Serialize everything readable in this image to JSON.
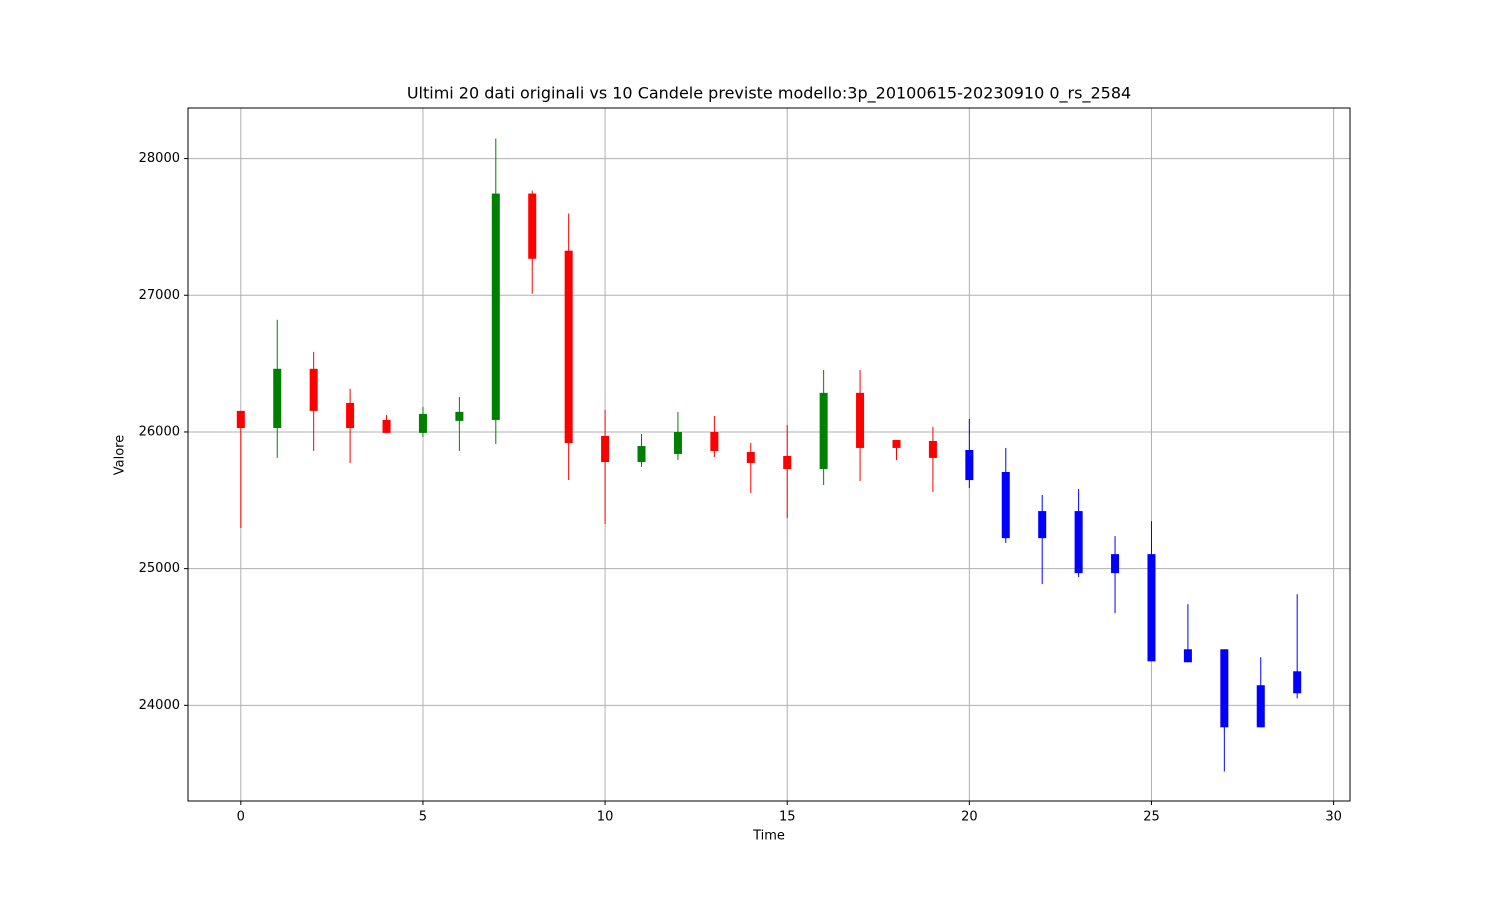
{
  "chart_data": {
    "type": "candlestick",
    "title": "Ultimi 20 dati originali vs 10 Candele previste modello:3p_20100615-20230910 0_rs_2584",
    "x_label": "Time",
    "y_label": "Valore",
    "xlim": [
      -1.45,
      30.45
    ],
    "ylim": [
      23300,
      28370
    ],
    "xticks": [
      0,
      5,
      10,
      15,
      20,
      25,
      30
    ],
    "yticks": [
      24000,
      25000,
      26000,
      27000,
      28000
    ],
    "grid": true,
    "series": [
      {
        "color_up": "green",
        "color_down": "red",
        "x": [
          0,
          1,
          2,
          3,
          4,
          5,
          6,
          7,
          8,
          9,
          10,
          11,
          12,
          13,
          14,
          15,
          16,
          17,
          18,
          19
        ],
        "open": [
          26154,
          26029,
          26462,
          26212,
          26088,
          25993,
          26081,
          26088,
          27744,
          27326,
          25971,
          25780,
          25839,
          26000,
          25853,
          25824,
          25729,
          26286,
          25941,
          25934
        ],
        "high": [
          26154,
          26821,
          26586,
          26315,
          26125,
          26183,
          26256,
          28147,
          27766,
          27597,
          26161,
          25985,
          26147,
          26117,
          25919,
          26051,
          26454,
          26454,
          25941,
          26037
        ],
        "low": [
          25297,
          25810,
          25861,
          25773,
          25993,
          25963,
          25861,
          25912,
          27011,
          25648,
          25326,
          25744,
          25795,
          25817,
          25553,
          25370,
          25612,
          25641,
          25795,
          25560
        ],
        "close": [
          26029,
          26462,
          26154,
          26029,
          25993,
          26132,
          26147,
          27744,
          27267,
          25919,
          25780,
          25897,
          26000,
          25861,
          25773,
          25729,
          26286,
          25883,
          25883,
          25810
        ]
      },
      {
        "color": "blue",
        "x": [
          20,
          21,
          22,
          23,
          24,
          25,
          26,
          27,
          28,
          29
        ],
        "open": [
          25868,
          25707,
          25421,
          25421,
          25106,
          25106,
          24410,
          24410,
          24147,
          24249
        ],
        "high": [
          26095,
          25883,
          25539,
          25582,
          25238,
          25348,
          24740,
          24410,
          24352,
          24813
        ],
        "low": [
          25590,
          25187,
          24887,
          24938,
          24674,
          24322,
          24315,
          23516,
          23839,
          24051
        ],
        "close": [
          25648,
          25223,
          25223,
          24967,
          24967,
          24322,
          24315,
          23839,
          23839,
          24088
        ]
      }
    ]
  }
}
